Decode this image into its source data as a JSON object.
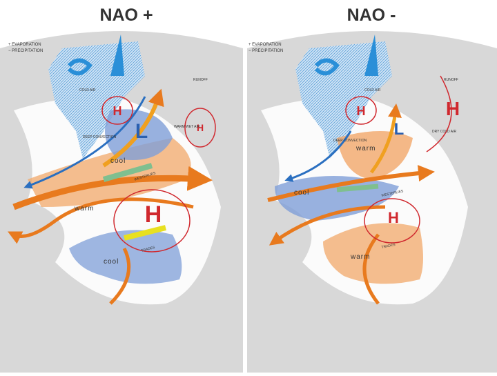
{
  "panels": [
    {
      "title": "NAO +",
      "legend": [
        "+ EVAPORATION",
        "− PRECIPITATION"
      ],
      "labels": {
        "high_small": "H",
        "low": "L",
        "high_east": "H",
        "high_big": "H",
        "cool_north": "cool",
        "warm": "warm",
        "cool_south": "cool",
        "westerlies": "WESTERLIES",
        "trades": "TRADES",
        "cold_air": "COLD AIR",
        "deep_convection": "DEEP CONVECTION",
        "warm_air": "WARM WET AIR",
        "runoff": "RUNOFF"
      }
    },
    {
      "title": "NAO -",
      "legend": [
        "+ EVAPORATION",
        "− PRECIPITATION"
      ],
      "labels": {
        "high_small": "H",
        "low": "L",
        "high_east": "H",
        "high_big": "H",
        "warm_north": "warm",
        "cool": "cool",
        "warm_south": "warm",
        "westerlies": "WESTERLIES",
        "trades": "TRADES",
        "cold_air": "COLD AIR",
        "deep_convection": "DEEP CONVECTION",
        "dry_air": "DRY COLD AIR",
        "runoff": "RUNOFF"
      }
    }
  ]
}
